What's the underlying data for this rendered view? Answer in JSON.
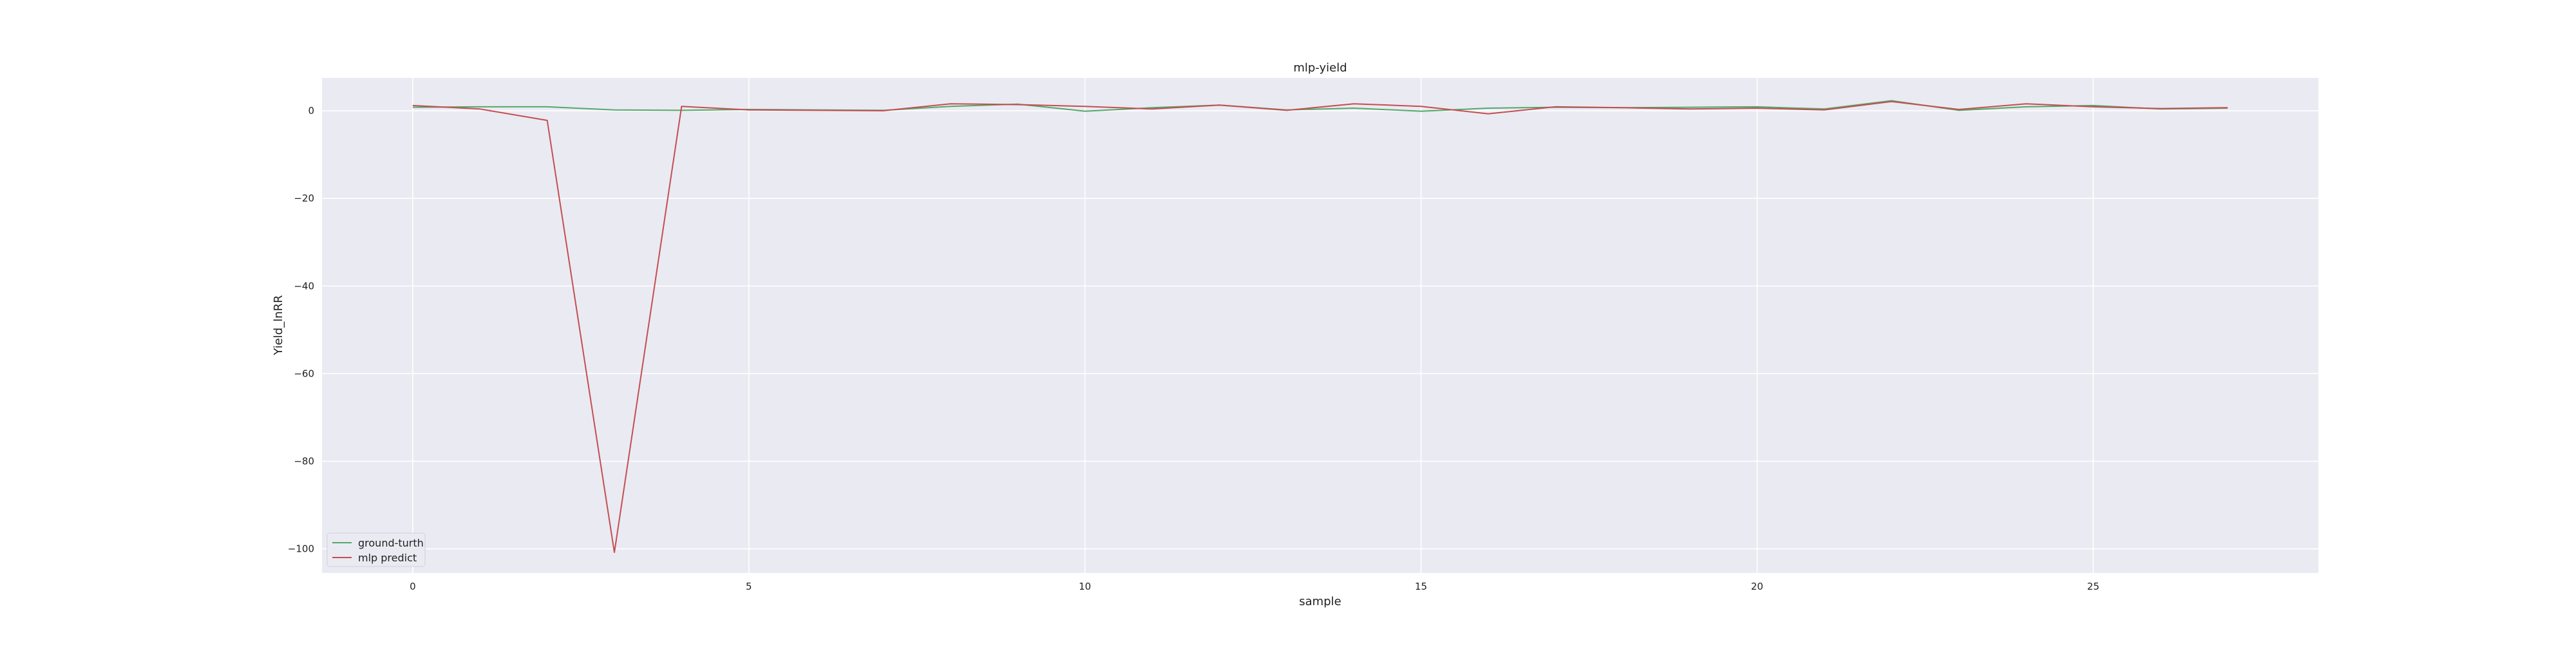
{
  "chart_data": {
    "type": "line",
    "title": "mlp-yield",
    "xlabel": "sample",
    "ylabel": "Yield_lnRR",
    "xlim": [
      -1.35,
      28.35
    ],
    "ylim": [
      -105.5,
      7.5
    ],
    "xticks": [
      0,
      5,
      10,
      15,
      20,
      25
    ],
    "yticks": [
      0,
      -20,
      -40,
      -60,
      -80,
      -100
    ],
    "xtick_labels": [
      "0",
      "5",
      "10",
      "15",
      "20",
      "25"
    ],
    "ytick_labels": [
      "0",
      "−20",
      "−40",
      "−60",
      "−80",
      "−100"
    ],
    "grid": true,
    "legend_position": "lower-left",
    "x": [
      0,
      1,
      2,
      3,
      4,
      5,
      6,
      7,
      8,
      9,
      10,
      11,
      12,
      13,
      14,
      15,
      16,
      17,
      18,
      19,
      20,
      21,
      22,
      23,
      24,
      25,
      26,
      27
    ],
    "series": [
      {
        "name": "ground-turth",
        "color": "#55a868",
        "values": [
          0.8,
          0.9,
          0.9,
          0.2,
          0.1,
          0.3,
          0.2,
          0.1,
          1.0,
          1.5,
          -0.1,
          0.7,
          1.3,
          0.2,
          0.6,
          -0.1,
          0.6,
          0.8,
          0.7,
          0.8,
          0.9,
          0.4,
          2.3,
          0.1,
          0.9,
          1.2,
          0.4,
          0.6
        ]
      },
      {
        "name": "mlp predict",
        "color": "#c44e52",
        "values": [
          1.2,
          0.4,
          -2.2,
          -100.8,
          1.0,
          0.2,
          0.1,
          0.0,
          1.6,
          1.4,
          1.0,
          0.4,
          1.3,
          0.1,
          1.6,
          1.0,
          -0.7,
          0.9,
          0.7,
          0.4,
          0.6,
          0.2,
          2.1,
          0.3,
          1.6,
          0.9,
          0.5,
          0.7
        ]
      }
    ],
    "colors": {
      "plot_background": "#eaeaf2",
      "grid": "#ffffff",
      "page_background": "#ffffff"
    }
  }
}
